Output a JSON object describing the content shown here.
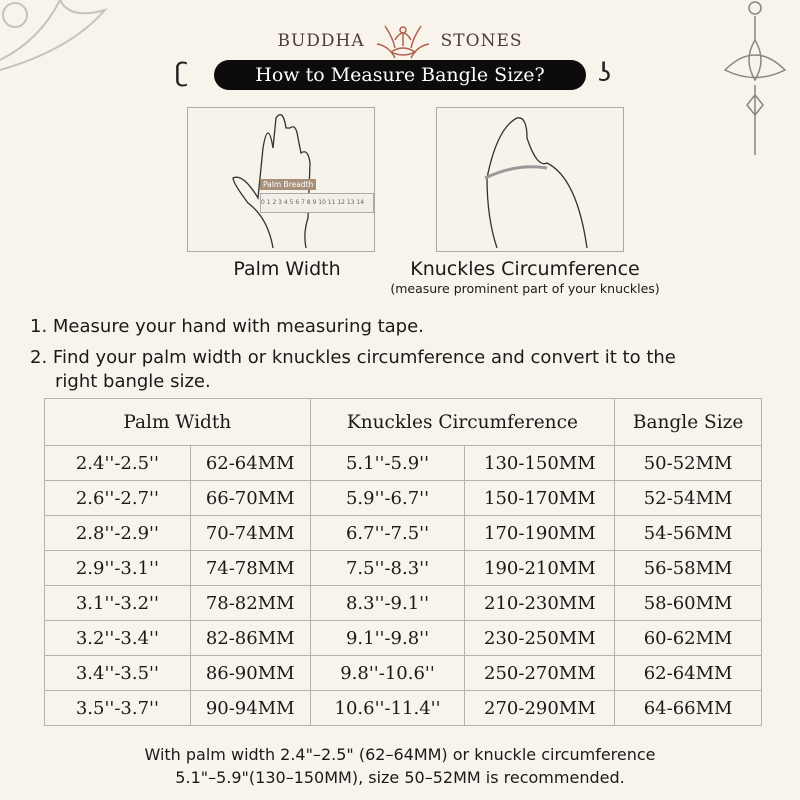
{
  "brand": {
    "left": "BUDDHA",
    "right": "STONES",
    "logo_icon": "meditating-lotus-logo"
  },
  "title": "How to Measure Bangle Size?",
  "illustrations": [
    {
      "caption": "Palm Width",
      "ruler_label": "Palm Breadth",
      "ruler_ticks": "0 1 2 3 4 5 6 7 8 9 10 11 12 13 14"
    },
    {
      "caption": "Knuckles Circumference",
      "note": "(measure prominent part of your knuckles)"
    }
  ],
  "steps": [
    "1. Measure your hand with measuring tape.",
    "2. Find your palm width or knuckles circumference and convert it to the",
    "right bangle size."
  ],
  "table": {
    "headers": [
      "Palm Width",
      "Knuckles Circumference",
      "Bangle Size"
    ],
    "rows": [
      [
        "2.4''-2.5''",
        "62-64MM",
        "5.1''-5.9''",
        "130-150MM",
        "50-52MM"
      ],
      [
        "2.6''-2.7''",
        "66-70MM",
        "5.9''-6.7''",
        "150-170MM",
        "52-54MM"
      ],
      [
        "2.8''-2.9''",
        "70-74MM",
        "6.7''-7.5''",
        "170-190MM",
        "54-56MM"
      ],
      [
        "2.9''-3.1''",
        "74-78MM",
        "7.5''-8.3''",
        "190-210MM",
        "56-58MM"
      ],
      [
        "3.1''-3.2''",
        "78-82MM",
        "8.3''-9.1''",
        "210-230MM",
        "58-60MM"
      ],
      [
        "3.2''-3.4''",
        "82-86MM",
        "9.1''-9.8''",
        "230-250MM",
        "60-62MM"
      ],
      [
        "3.4''-3.5''",
        "86-90MM",
        "9.8''-10.6''",
        "250-270MM",
        "62-64MM"
      ],
      [
        "3.5''-3.7''",
        "90-94MM",
        "10.6''-11.4''",
        "270-290MM",
        "64-66MM"
      ]
    ]
  },
  "footer": [
    "With palm width 2.4\"–2.5\" (62–64MM) or knuckle circumference",
    "5.1\"–5.9\"(130–150MM), size 50–52MM is recommended."
  ],
  "colors": {
    "background": "#f8f4ec",
    "banner": "#0e0b0b",
    "logo": "#b0604a"
  }
}
